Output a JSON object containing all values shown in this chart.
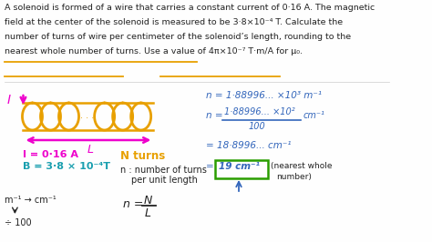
{
  "bg_color": "#fefefe",
  "color_orange": "#E8A000",
  "color_magenta": "#EE00CC",
  "color_cyan": "#1a9faf",
  "color_navy": "#111111",
  "color_green": "#2a9d00",
  "color_blue_eq": "#3366BB",
  "color_dark": "#222222",
  "title_lines": [
    "A solenoid is formed of a wire that carries a constant current of 0·16 A. The magnetic",
    "field at the center of the solenoid is measured to be 3·8×10⁻⁴ T. Calculate the",
    "number of turns of wire per centimeter of the solenoid’s length, rounding to the",
    "nearest whole number of turns. Use a value of 4π×10⁻⁷ T·m/A for μ₀."
  ],
  "underline_ranges": [
    [
      0.02,
      0.365,
      0.57
    ],
    [
      0.02,
      0.57,
      0.755
    ],
    [
      0.47,
      0.0,
      0.52
    ]
  ]
}
